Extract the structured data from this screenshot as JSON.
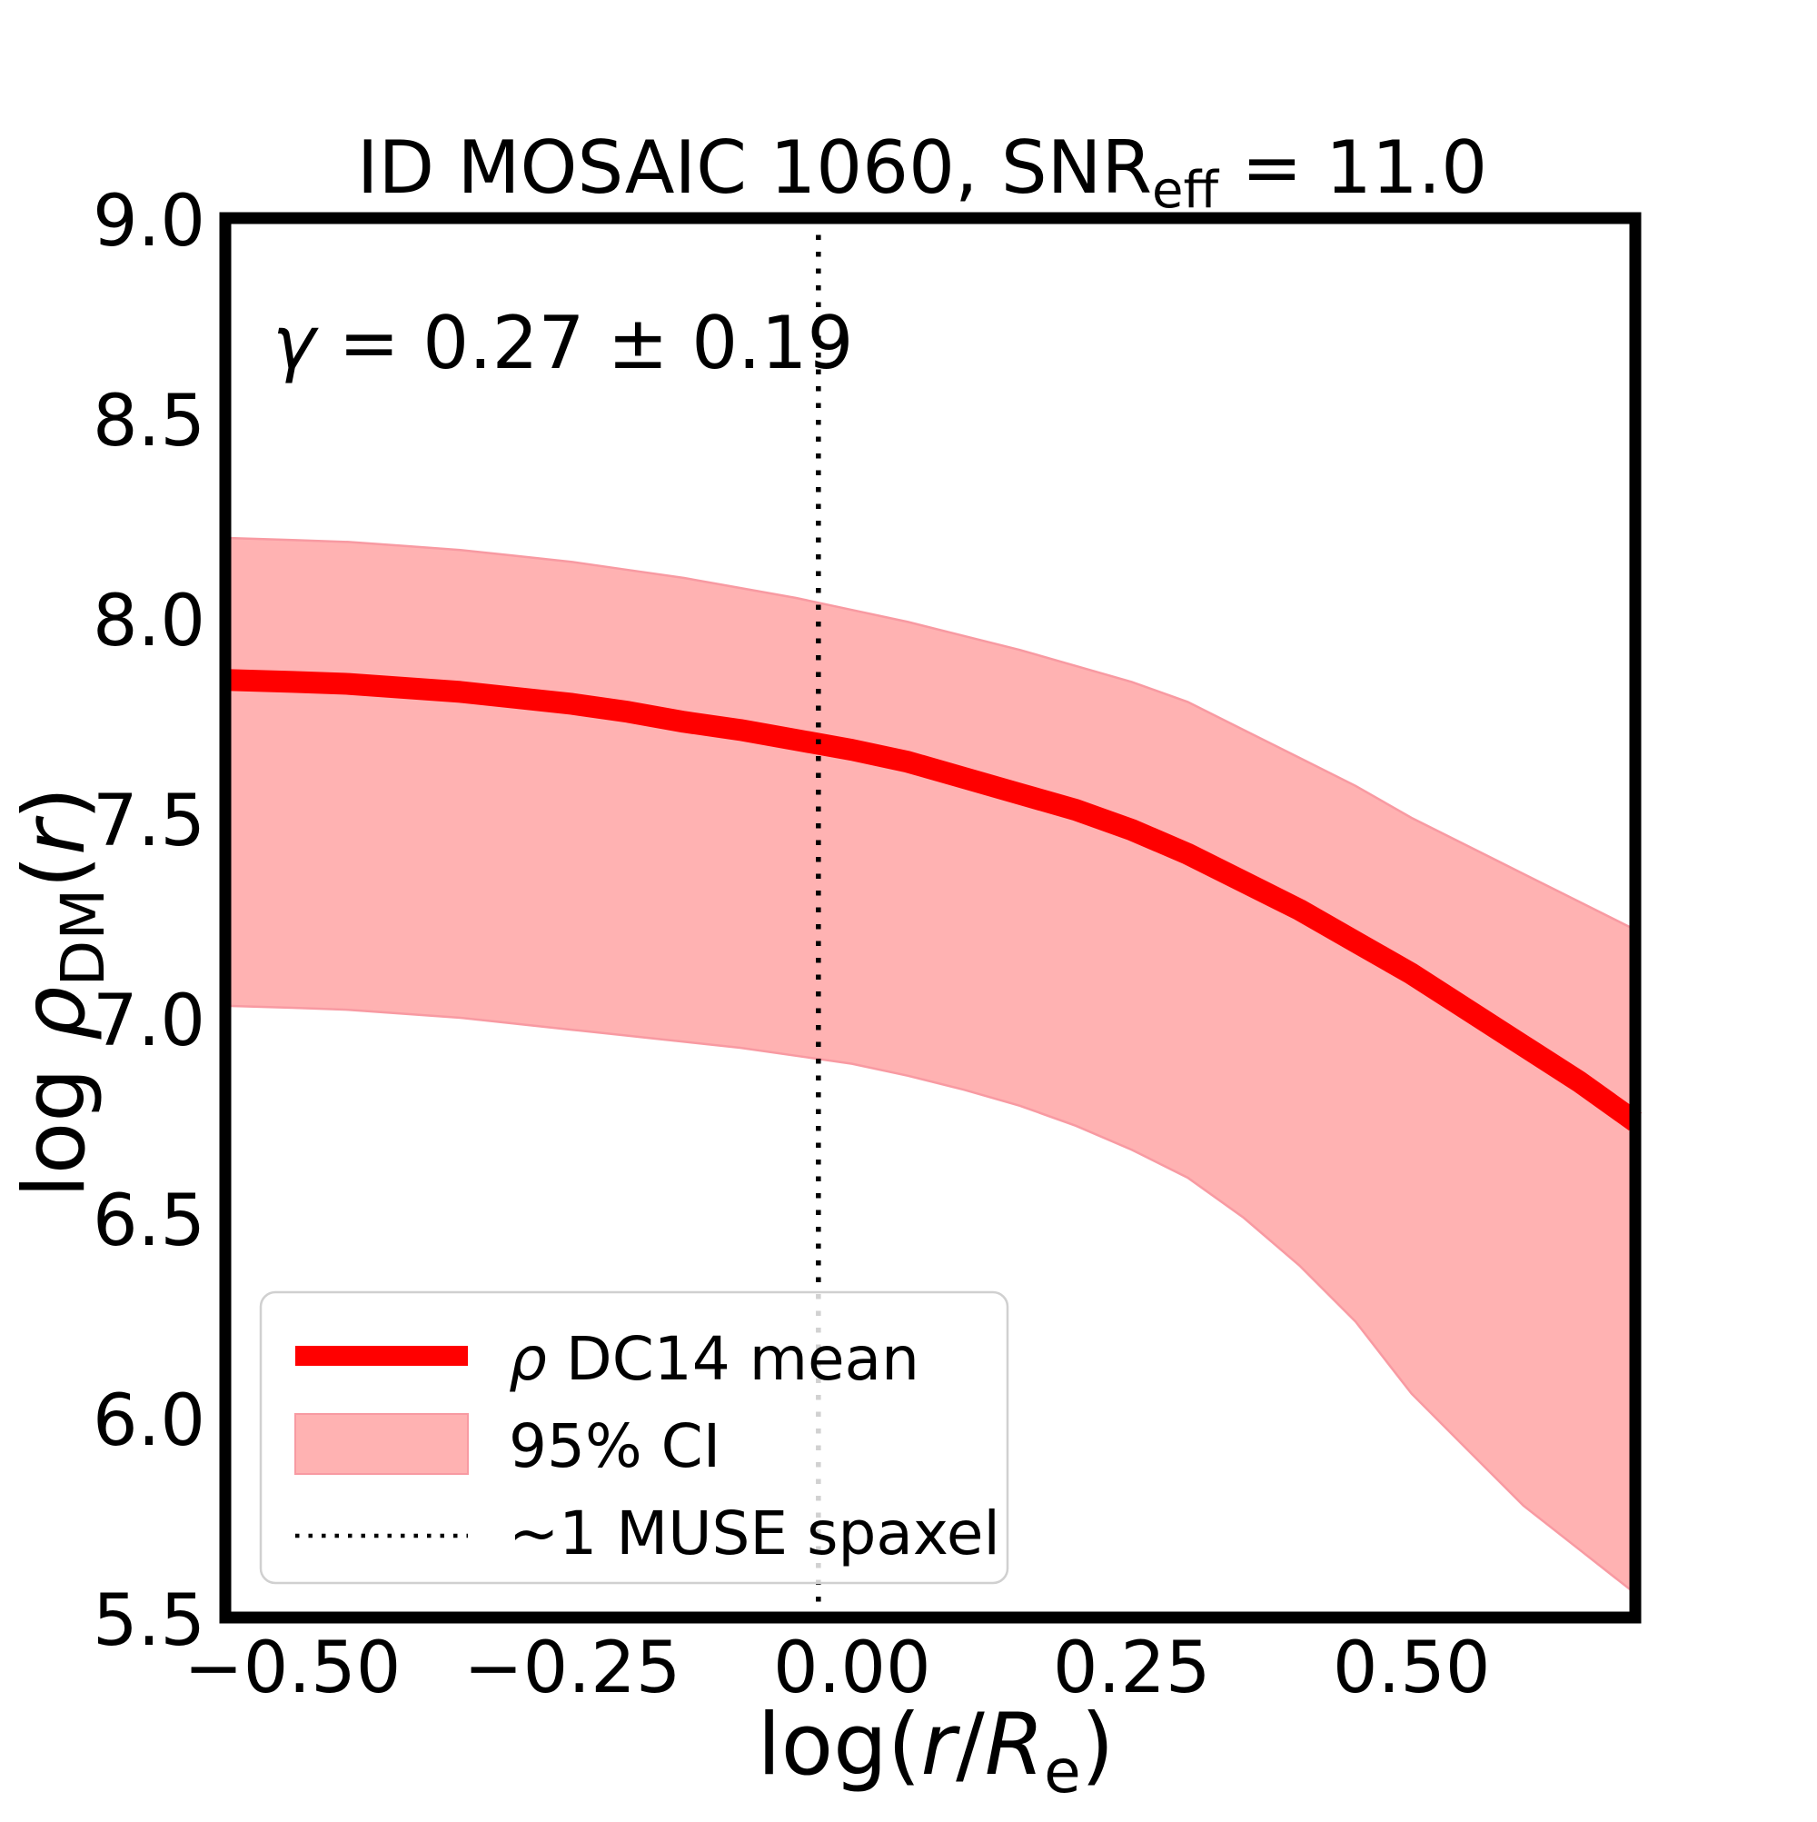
{
  "figure": {
    "title": {
      "part1": "ID MOSAIC 1060, SNR",
      "sub": "eff",
      "part2": " = 11.0"
    },
    "annotation": {
      "gamma": "γ",
      "rest": " = 0.27 ± 0.19"
    },
    "xlabel": {
      "pre": "log(",
      "r": "r",
      "slash": "/",
      "R": "R",
      "sub": "e",
      "post": ")"
    },
    "ylabel": {
      "pre": "log ",
      "rho": "ρ",
      "sub": "DM",
      "open": "(",
      "r": "r",
      "close": ")"
    }
  },
  "legend": {
    "items": [
      {
        "type": "line",
        "label_rho": "ρ",
        "label": " DC14 mean"
      },
      {
        "type": "patch",
        "label": "95% CI"
      },
      {
        "type": "dotted",
        "label": "~1 MUSE spaxel"
      }
    ]
  },
  "colors": {
    "mean_line": "#ff0000",
    "band_fill": "#ffb2b2",
    "band_edge": "#f89aa2",
    "dotted_line": "#000000",
    "frame": "#000000",
    "legend_border": "#d0d0d0",
    "legend_bg": "#ffffff",
    "legend_bg_opacity": 0.82
  },
  "chart_data": {
    "type": "line",
    "title": "ID MOSAIC 1060, SNR_eff = 11.0",
    "xlabel": "log(r/R_e)",
    "ylabel": "log ρ_DM(r)",
    "xlim": [
      -0.56,
      0.7
    ],
    "ylim": [
      5.5,
      9.0
    ],
    "grid": false,
    "legend_position": "lower left",
    "annotation": "γ = 0.27 ± 0.19",
    "x_ticks": {
      "values": [
        -0.5,
        -0.25,
        0.0,
        0.25,
        0.5
      ],
      "labels": [
        "−0.50",
        "−0.25",
        "0.00",
        "0.25",
        "0.50"
      ]
    },
    "y_ticks": {
      "values": [
        9.0,
        8.5,
        8.0,
        7.5,
        7.0,
        6.5,
        6.0,
        5.5
      ],
      "labels": [
        "9.0",
        "8.5",
        "8.0",
        "7.5",
        "7.0",
        "6.5",
        "6.0",
        "5.5"
      ]
    },
    "x": [
      -0.56,
      -0.5,
      -0.45,
      -0.4,
      -0.35,
      -0.3,
      -0.25,
      -0.2,
      -0.15,
      -0.1,
      -0.05,
      0.0,
      0.05,
      0.1,
      0.15,
      0.2,
      0.25,
      0.3,
      0.35,
      0.4,
      0.45,
      0.5,
      0.55,
      0.6,
      0.65,
      0.7
    ],
    "series": [
      {
        "name": "ρ DC14 mean",
        "style": "mean-line",
        "values": [
          7.845,
          7.84,
          7.835,
          7.825,
          7.815,
          7.8,
          7.785,
          7.765,
          7.74,
          7.72,
          7.695,
          7.67,
          7.64,
          7.6,
          7.56,
          7.52,
          7.47,
          7.41,
          7.34,
          7.27,
          7.19,
          7.11,
          7.02,
          6.93,
          6.84,
          6.74
        ]
      },
      {
        "name": "95% CI upper",
        "style": "band-upper",
        "values": [
          8.2,
          8.195,
          8.19,
          8.18,
          8.17,
          8.155,
          8.14,
          8.12,
          8.1,
          8.075,
          8.05,
          8.02,
          7.99,
          7.955,
          7.92,
          7.88,
          7.84,
          7.79,
          7.72,
          7.65,
          7.58,
          7.5,
          7.43,
          7.36,
          7.29,
          7.22
        ]
      },
      {
        "name": "95% CI lower",
        "style": "band-lower",
        "values": [
          7.03,
          7.025,
          7.02,
          7.01,
          7.0,
          6.985,
          6.97,
          6.955,
          6.94,
          6.925,
          6.905,
          6.885,
          6.855,
          6.82,
          6.78,
          6.73,
          6.67,
          6.6,
          6.5,
          6.38,
          6.24,
          6.06,
          5.92,
          5.78,
          5.67,
          5.56
        ]
      }
    ],
    "axvline": {
      "x": -0.03,
      "name": "~1 MUSE spaxel",
      "style": "dotted"
    }
  }
}
